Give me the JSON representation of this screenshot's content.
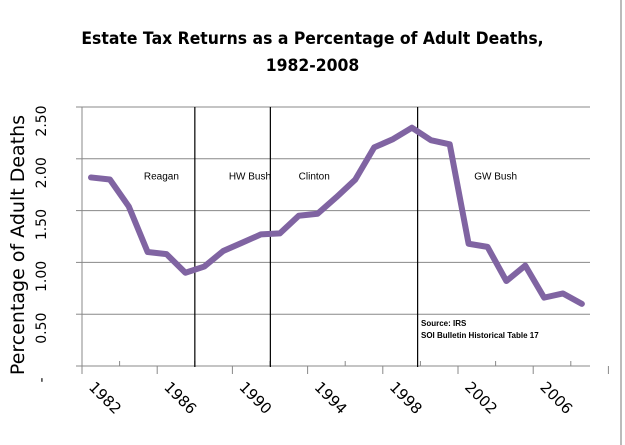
{
  "chart_data": {
    "type": "line",
    "title": [
      "Estate Tax Returns as a Percentage of Adult Deaths,",
      "1982-2008"
    ],
    "ylabel": "Percentage of Adult Deaths",
    "xlabel": "",
    "ylim": [
      0,
      2.5
    ],
    "yticks": [
      0,
      0.5,
      1.0,
      1.5,
      2.0,
      2.5
    ],
    "ytick_labels": [
      "-",
      "0.50",
      "1.00",
      "1.50",
      "2.00",
      "2.50"
    ],
    "xlim": [
      1981.5,
      2008.5
    ],
    "xtick_labels": [
      "1982",
      "1986",
      "1990",
      "1994",
      "1998",
      "2002",
      "2006"
    ],
    "grid": "horizontal",
    "line_color": "#8064a2",
    "x": [
      1982,
      1983,
      1984,
      1985,
      1986,
      1987,
      1988,
      1989,
      1990,
      1991,
      1992,
      1993,
      1994,
      1995,
      1996,
      1997,
      1998,
      1999,
      2000,
      2001,
      2002,
      2003,
      2004,
      2005,
      2006,
      2007,
      2008
    ],
    "values": [
      1.82,
      1.8,
      1.54,
      1.1,
      1.08,
      0.9,
      0.96,
      1.11,
      1.19,
      1.27,
      1.28,
      1.45,
      1.47,
      1.63,
      1.8,
      2.11,
      2.19,
      2.3,
      2.18,
      2.14,
      1.18,
      1.15,
      0.82,
      0.97,
      0.66,
      0.7,
      0.6
    ],
    "dividers": [
      1987.5,
      1991.5,
      1999.3
    ],
    "annotations": [
      {
        "text": "Reagan",
        "x": 1984.8,
        "y": 1.85
      },
      {
        "text": "HW Bush",
        "x": 1989.3,
        "y": 1.85
      },
      {
        "text": "Clinton",
        "x": 1993.0,
        "y": 1.85
      },
      {
        "text": "GW Bush",
        "x": 2002.3,
        "y": 1.85
      }
    ],
    "source": [
      "Source: IRS",
      "SOI Bulletin  Historical Table  17"
    ]
  }
}
